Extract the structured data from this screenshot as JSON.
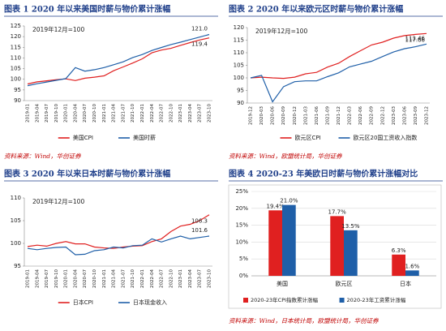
{
  "chart_data": [
    {
      "type": "line",
      "title": "图表 1  2020 年以来美国时薪与物价累计涨幅",
      "annotation": "2019年12月=100",
      "categories": [
        "2019-01",
        "2019-04",
        "2019-07",
        "2019-10",
        "2020-01",
        "2020-04",
        "2020-07",
        "2020-10",
        "2021-01",
        "2021-04",
        "2021-07",
        "2021-10",
        "2022-01",
        "2022-04",
        "2022-07",
        "2022-10",
        "2023-01",
        "2023-04",
        "2023-07",
        "2023-10"
      ],
      "series": [
        {
          "name": "美国CPI",
          "color": "#e02020",
          "values": [
            97.8,
            98.8,
            99.3,
            99.8,
            100.2,
            99.4,
            100.5,
            101.0,
            101.6,
            104.0,
            105.8,
            107.6,
            109.6,
            112.4,
            113.7,
            114.5,
            115.9,
            117.2,
            118.4,
            119.4
          ],
          "value_labels": [
            null,
            null,
            null,
            null,
            null,
            null,
            null,
            null,
            null,
            null,
            null,
            null,
            null,
            null,
            null,
            null,
            null,
            null,
            null,
            "119.4"
          ]
        },
        {
          "name": "美国时薪",
          "color": "#1f5fa8",
          "values": [
            97.0,
            97.9,
            98.7,
            99.5,
            100.3,
            105.5,
            103.8,
            104.5,
            105.5,
            106.8,
            108.2,
            110.2,
            111.6,
            113.5,
            114.9,
            116.3,
            117.4,
            118.6,
            119.8,
            121.0
          ],
          "value_labels": [
            null,
            null,
            null,
            null,
            null,
            null,
            null,
            null,
            null,
            null,
            null,
            null,
            null,
            null,
            null,
            null,
            null,
            null,
            null,
            "121.0"
          ]
        }
      ],
      "ylim": [
        90,
        125
      ],
      "yticks": [
        90,
        95,
        100,
        105,
        110,
        115,
        120,
        125
      ],
      "grid": false
    },
    {
      "type": "line",
      "title": "图表 2  2020 年以来欧元区时薪与物价累计涨幅",
      "annotation": "2019年12月=100",
      "categories": [
        "2019-12",
        "2020-03",
        "2020-06",
        "2020-09",
        "2020-12",
        "2021-03",
        "2021-06",
        "2021-09",
        "2021-12",
        "2022-03",
        "2022-06",
        "2022-09",
        "2022-12",
        "2023-03",
        "2023-06",
        "2023-09",
        "2023-12"
      ],
      "series": [
        {
          "name": "欧元区CPI",
          "color": "#e02020",
          "values": [
            100,
            100.3,
            100.0,
            99.8,
            100.3,
            101.6,
            102.2,
            104.3,
            105.8,
            108.5,
            110.8,
            113.1,
            114.2,
            115.8,
            116.8,
            117.3,
            117.66
          ],
          "value_labels": [
            null,
            null,
            null,
            null,
            null,
            null,
            null,
            null,
            null,
            null,
            null,
            null,
            null,
            null,
            null,
            null,
            "117.66"
          ]
        },
        {
          "name": "欧元区20国工资收入指数",
          "color": "#1f5fa8",
          "values": [
            100,
            101,
            90.5,
            96.5,
            98.5,
            98.8,
            98.8,
            100.5,
            102.0,
            104.4,
            105.5,
            106.6,
            108.5,
            110.3,
            111.6,
            112.4,
            113.46
          ],
          "value_labels": [
            null,
            null,
            null,
            null,
            null,
            null,
            null,
            null,
            null,
            null,
            null,
            null,
            null,
            null,
            null,
            null,
            "113.46"
          ]
        }
      ],
      "ylim": [
        90,
        120
      ],
      "yticks": [
        90,
        95,
        100,
        105,
        110,
        115,
        120
      ],
      "grid": false
    },
    {
      "type": "line",
      "title": "图表 3  2020 年以来日本时薪与物价累计涨幅",
      "annotation": "2019年12月=100",
      "categories": [
        "2019-01",
        "2019-04",
        "2019-07",
        "2019-10",
        "2020-01",
        "2020-04",
        "2020-07",
        "2020-10",
        "2021-01",
        "2021-04",
        "2021-07",
        "2021-10",
        "2022-01",
        "2022-04",
        "2022-07",
        "2022-10",
        "2023-01",
        "2023-04",
        "2023-07",
        "2023-10"
      ],
      "series": [
        {
          "name": "日本CPI",
          "color": "#e02020",
          "values": [
            99.3,
            99.6,
            99.4,
            100.0,
            100.4,
            99.9,
            99.9,
            99.2,
            99.0,
            98.9,
            99.2,
            99.4,
            99.5,
            100.4,
            101.0,
            102.6,
            103.8,
            104.2,
            105.0,
            106.3
          ],
          "value_labels": [
            null,
            null,
            null,
            null,
            null,
            null,
            null,
            null,
            null,
            null,
            null,
            null,
            null,
            null,
            null,
            null,
            null,
            null,
            null,
            "106.3"
          ]
        },
        {
          "name": "日本现金收入",
          "color": "#1f5fa8",
          "values": [
            98.9,
            98.6,
            98.9,
            99.1,
            99.2,
            97.5,
            97.6,
            98.4,
            98.6,
            99.2,
            99.0,
            99.5,
            99.6,
            101.0,
            100.3,
            101.0,
            101.6,
            101.0,
            101.3,
            101.6
          ],
          "value_labels": [
            null,
            null,
            null,
            null,
            null,
            null,
            null,
            null,
            null,
            null,
            null,
            null,
            null,
            null,
            null,
            null,
            null,
            null,
            null,
            "101.6"
          ]
        }
      ],
      "ylim": [
        95,
        110
      ],
      "yticks": [
        95,
        100,
        105,
        110
      ],
      "grid": false
    },
    {
      "type": "bar",
      "title": "图表 4  2020-23 年美欧日时薪与物价累计涨幅对比",
      "categories": [
        "美国",
        "欧元区",
        "日本"
      ],
      "series": [
        {
          "name": "2020-23年CPI指数累计涨幅",
          "color": "#e02020",
          "values": [
            19.4,
            17.7,
            6.3
          ],
          "value_labels": [
            "19.4%",
            "17.7%",
            "6.3%"
          ]
        },
        {
          "name": "2020-23年工资累计涨幅",
          "color": "#1f5fa8",
          "values": [
            21.0,
            13.5,
            1.6
          ],
          "value_labels": [
            "21.0%",
            "13.5%",
            "1.6%"
          ]
        }
      ],
      "ylim": [
        0,
        25
      ],
      "yticks": [
        {
          "value": 0,
          "label": "0%"
        },
        {
          "value": 5,
          "label": "5%"
        },
        {
          "value": 10,
          "label": "10%"
        },
        {
          "value": 15,
          "label": "15%"
        },
        {
          "value": 20,
          "label": "20%"
        },
        {
          "value": 25,
          "label": "25%"
        }
      ],
      "grid": true
    }
  ],
  "sources": [
    "资料来源：Wind，华创证券",
    "资料来源：Wind，欧盟统计局，华创证券",
    "资料来源：Wind，日本统计局，欧盟统计局，华创证券"
  ]
}
